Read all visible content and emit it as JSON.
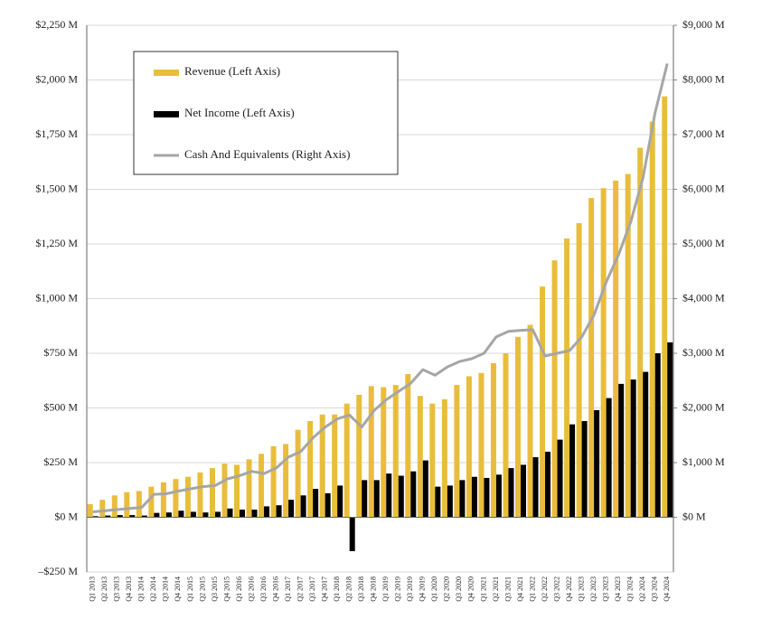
{
  "chart_data": {
    "type": "bar",
    "categories": [
      "Q1 2013",
      "Q2 2013",
      "Q3 2013",
      "Q4 2013",
      "Q1 2014",
      "Q2 2014",
      "Q3 2014",
      "Q4 2014",
      "Q1 2015",
      "Q2 2015",
      "Q3 2015",
      "Q4 2015",
      "Q1 2016",
      "Q2 2016",
      "Q3 2016",
      "Q4 2016",
      "Q1 2017",
      "Q2 2017",
      "Q3 2017",
      "Q4 2017",
      "Q1 2018",
      "Q2 2018",
      "Q3 2018",
      "Q4 2018",
      "Q1 2019",
      "Q2 2019",
      "Q3 2019",
      "Q4 2019",
      "Q1 2020",
      "Q2 2020",
      "Q3 2020",
      "Q4 2020",
      "Q1 2021",
      "Q2 2021",
      "Q3 2021",
      "Q4 2021",
      "Q1 2022",
      "Q2 2022",
      "Q3 2022",
      "Q4 2022",
      "Q1 2023",
      "Q2 2023",
      "Q3 2023",
      "Q4 2023",
      "Q1 2024",
      "Q2 2024",
      "Q3 2024",
      "Q4 2024"
    ],
    "series": [
      {
        "name": "Revenue (Left Axis)",
        "type": "bar",
        "color": "#e9bd3c",
        "values": [
          60,
          80,
          100,
          115,
          120,
          140,
          160,
          175,
          185,
          205,
          225,
          245,
          240,
          265,
          290,
          325,
          335,
          400,
          440,
          470,
          470,
          520,
          560,
          600,
          595,
          605,
          655,
          555,
          520,
          540,
          605,
          645,
          660,
          705,
          750,
          825,
          880,
          1055,
          1175,
          1275,
          1345,
          1460,
          1505,
          1540,
          1570,
          1690,
          1810,
          1925
        ]
      },
      {
        "name": "Net Income (Left Axis)",
        "type": "bar",
        "color": "#000000",
        "values": [
          5,
          8,
          10,
          10,
          8,
          20,
          22,
          30,
          25,
          22,
          25,
          40,
          35,
          35,
          50,
          55,
          80,
          100,
          130,
          110,
          145,
          -155,
          170,
          170,
          200,
          190,
          210,
          260,
          140,
          145,
          170,
          185,
          180,
          195,
          225,
          240,
          275,
          300,
          355,
          425,
          440,
          490,
          545,
          610,
          630,
          665,
          750,
          800
        ]
      },
      {
        "name": "Cash And Equivalents (Right Axis)",
        "type": "line",
        "axis": "y2",
        "color": "#a6a6a6",
        "values": [
          100,
          120,
          140,
          160,
          180,
          420,
          430,
          480,
          520,
          560,
          580,
          700,
          760,
          840,
          800,
          900,
          1100,
          1200,
          1450,
          1650,
          1800,
          1870,
          1650,
          1950,
          2150,
          2300,
          2450,
          2700,
          2600,
          2750,
          2850,
          2900,
          3000,
          3300,
          3400,
          3420,
          3430,
          2950,
          3000,
          3050,
          3300,
          3700,
          4300,
          4800,
          5400,
          6200,
          7400,
          8300
        ]
      }
    ],
    "ylim": [
      -250,
      2250
    ],
    "yticks": [
      {
        "value": -250,
        "label": "–$250 M"
      },
      {
        "value": 0,
        "label": "$0 M"
      },
      {
        "value": 250,
        "label": "$250 M"
      },
      {
        "value": 500,
        "label": "$500 M"
      },
      {
        "value": 750,
        "label": "$750 M"
      },
      {
        "value": 1000,
        "label": "$1,000 M"
      },
      {
        "value": 1250,
        "label": "$1,250 M"
      },
      {
        "value": 1500,
        "label": "$1,500 M"
      },
      {
        "value": 1750,
        "label": "$1,750 M"
      },
      {
        "value": 2000,
        "label": "$2,000 M"
      },
      {
        "value": 2250,
        "label": "$2,250 M"
      }
    ],
    "y2lim": [
      -1000,
      9000
    ],
    "y2ticks": [
      {
        "value": 0,
        "label": "$0 M"
      },
      {
        "value": 1000,
        "label": "$1,000 M"
      },
      {
        "value": 2000,
        "label": "$2,000 M"
      },
      {
        "value": 3000,
        "label": "$3,000 M"
      },
      {
        "value": 4000,
        "label": "$4,000 M"
      },
      {
        "value": 5000,
        "label": "$5,000 M"
      },
      {
        "value": 6000,
        "label": "$6,000 M"
      },
      {
        "value": 7000,
        "label": "$7,000 M"
      },
      {
        "value": 8000,
        "label": "$8,000 M"
      },
      {
        "value": 9000,
        "label": "$9,000 M"
      }
    ],
    "grid": true
  }
}
